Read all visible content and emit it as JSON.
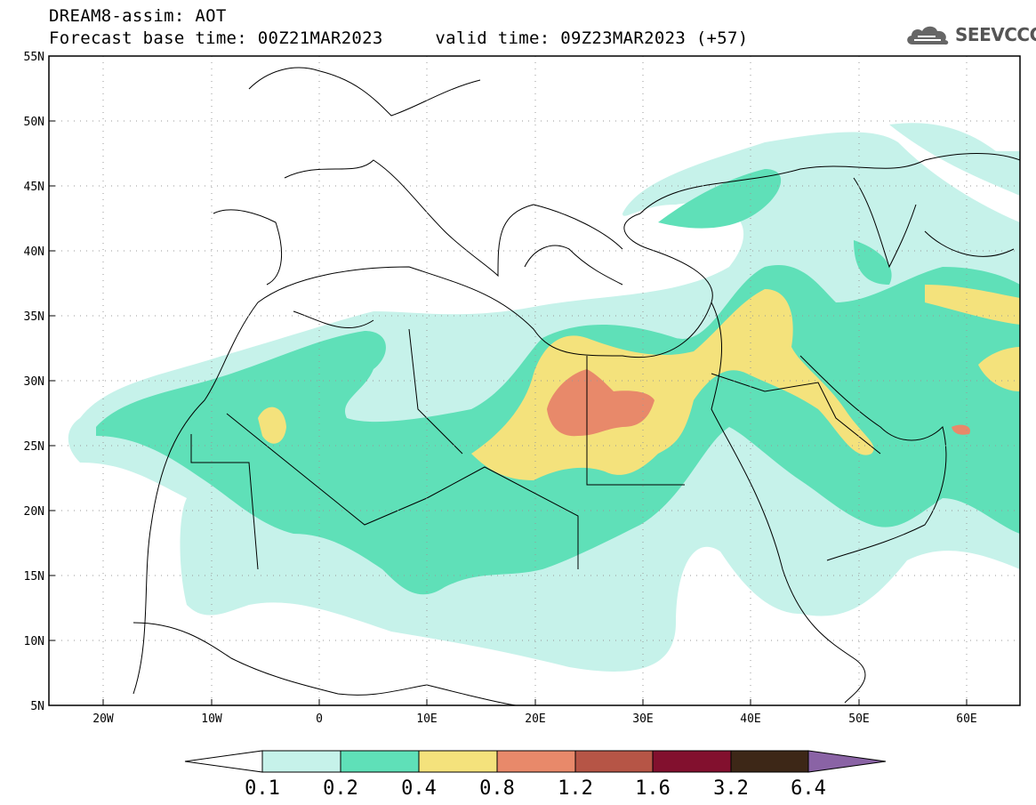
{
  "header": {
    "title_line1": "DREAM8-assim: AOT",
    "title_line2": "Forecast base time: 00Z21MAR2023     valid time: 09Z23MAR2023 (+57)",
    "logo_text": "SEEVCCC"
  },
  "map": {
    "lat_labels": [
      "55N",
      "50N",
      "45N",
      "40N",
      "35N",
      "30N",
      "25N",
      "20N",
      "15N",
      "10N",
      "5N"
    ],
    "lon_labels": [
      "20W",
      "10W",
      "0",
      "10E",
      "20E",
      "30E",
      "40E",
      "50E",
      "60E"
    ]
  },
  "colorbar": {
    "levels": [
      "0.1",
      "0.2",
      "0.4",
      "0.8",
      "1.2",
      "1.6",
      "3.2",
      "6.4"
    ],
    "colors": [
      "#ffffff",
      "#c6f2ea",
      "#5fe0b8",
      "#f4e27c",
      "#e8896a",
      "#b65546",
      "#82102e",
      "#3d2717",
      "#8a63a5"
    ]
  }
}
